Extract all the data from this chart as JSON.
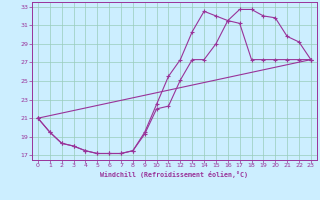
{
  "xlabel": "Windchill (Refroidissement éolien,°C)",
  "background_color": "#cceeff",
  "grid_color": "#99ccbb",
  "line_color": "#993399",
  "spine_color": "#993399",
  "xlim": [
    -0.5,
    23.5
  ],
  "ylim": [
    16.5,
    33.5
  ],
  "xticks": [
    0,
    1,
    2,
    3,
    4,
    5,
    6,
    7,
    8,
    9,
    10,
    11,
    12,
    13,
    14,
    15,
    16,
    17,
    18,
    19,
    20,
    21,
    22,
    23
  ],
  "yticks": [
    17,
    19,
    21,
    23,
    25,
    27,
    29,
    31,
    33
  ],
  "curve1_x": [
    0,
    1,
    2,
    3,
    4,
    5,
    6,
    7,
    8,
    9,
    10,
    11,
    12,
    13,
    14,
    15,
    16,
    17,
    18,
    19,
    20,
    21,
    22,
    23
  ],
  "curve1_y": [
    21,
    19.5,
    18.3,
    18.0,
    17.5,
    17.2,
    17.2,
    17.2,
    17.5,
    19.5,
    22.5,
    25.5,
    27.3,
    30.3,
    32.5,
    32.0,
    31.5,
    32.7,
    32.7,
    32.0,
    31.8,
    29.8,
    29.2,
    27.3
  ],
  "curve2_x": [
    0,
    1,
    2,
    3,
    4,
    5,
    6,
    7,
    8,
    9,
    10,
    11,
    12,
    13,
    14,
    15,
    16,
    17,
    18,
    19,
    20,
    21,
    22,
    23
  ],
  "curve2_y": [
    21,
    19.5,
    18.3,
    18.0,
    17.5,
    17.2,
    17.2,
    17.2,
    17.5,
    19.3,
    22.0,
    22.3,
    25.1,
    27.3,
    27.3,
    29.0,
    31.5,
    31.2,
    27.3,
    27.3,
    27.3,
    27.3,
    27.3,
    27.3
  ],
  "curve3_x": [
    0,
    23
  ],
  "curve3_y": [
    21,
    27.3
  ],
  "marker": "+"
}
